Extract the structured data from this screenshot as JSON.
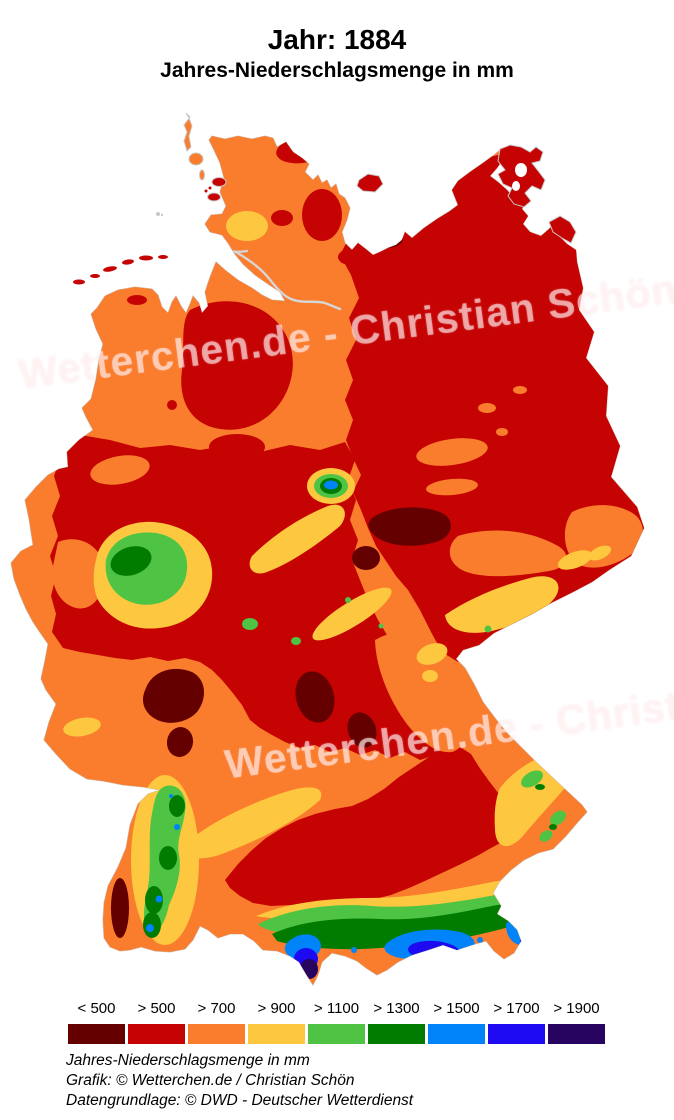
{
  "title": "Jahr: 1884",
  "subtitle": "Jahres-Niederschlagsmenge in mm",
  "watermark": {
    "text": "Wetterchen.de - Christian Schön"
  },
  "legend": {
    "items": [
      {
        "label": "< 500",
        "color": "#640000"
      },
      {
        "label": "> 500",
        "color": "#C50303"
      },
      {
        "label": "> 700",
        "color": "#FA7D2D"
      },
      {
        "label": "> 900",
        "color": "#FDC83F"
      },
      {
        "label": "> 1100",
        "color": "#4FC344"
      },
      {
        "label": "> 1300",
        "color": "#017C01"
      },
      {
        "label": "> 1500",
        "color": "#0183F9"
      },
      {
        "label": "> 1700",
        "color": "#1D0AF1"
      },
      {
        "label": "> 1900",
        "color": "#26045F"
      }
    ]
  },
  "footer": {
    "line1": "Jahres-Niederschlagsmenge in mm",
    "line2": "Grafik: © Wetterchen.de / Christian Schön",
    "line3": "Datengrundlage: © DWD - Deutscher Wetterdienst"
  }
}
